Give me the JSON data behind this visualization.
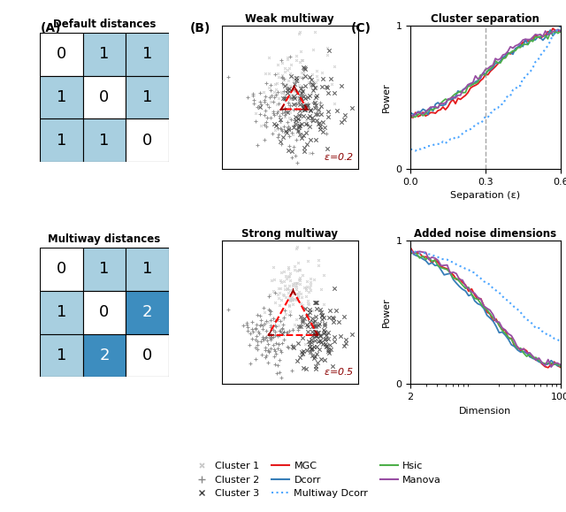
{
  "default_matrix": [
    [
      0,
      1,
      1
    ],
    [
      1,
      0,
      1
    ],
    [
      1,
      1,
      0
    ]
  ],
  "multiway_matrix": [
    [
      0,
      1,
      1
    ],
    [
      1,
      0,
      2
    ],
    [
      1,
      2,
      0
    ]
  ],
  "color_0": "#ffffff",
  "color_1": "#a8cfe0",
  "color_2": "#3d8dbf",
  "title_A_top": "Default distances",
  "title_A_bot": "Multiway distances",
  "title_B_top": "Weak multiway",
  "title_B_bot": "Strong multiway",
  "title_C_top": "Cluster separation",
  "title_C_bot": "Added noise dimensions",
  "xlabel_C_top": "Separation (ε)",
  "xlabel_C_bot": "Dimension",
  "ylabel_C": "Power",
  "eps_weak": 0.2,
  "eps_strong": 0.5,
  "vline_x": 0.3,
  "sep_xlim": [
    0.0,
    0.6
  ],
  "sep_ylim": [
    0,
    1
  ],
  "dim_xlim_log": [
    2,
    100
  ],
  "dim_ylim": [
    0,
    1
  ],
  "line_colors": {
    "MGC": "#e41a1c",
    "Dcorr": "#377eb8",
    "Multiway Dcorr": "#4da6ff",
    "Hsic": "#4daf4a",
    "Manova": "#984ea3"
  },
  "cluster_colors": {
    "c1": "#cccccc",
    "c2": "#888888",
    "c3": "#444444"
  },
  "bg_color": "#ffffff"
}
